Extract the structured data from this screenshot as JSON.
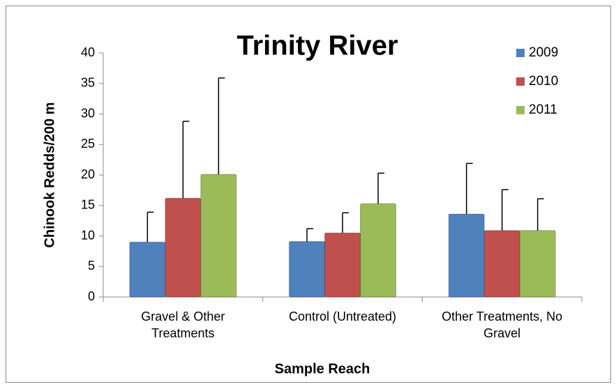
{
  "chart_data": {
    "type": "bar",
    "title": "Trinity River",
    "x_label": "Sample Reach",
    "y_label": "Chinook Redds/200 m",
    "categories": [
      "Gravel & Other Treatments",
      "Control (Untreated)",
      "Other Treatments, No Gravel"
    ],
    "series": [
      {
        "name": "2009",
        "color": "#4f81bd",
        "values": [
          9.0,
          9.1,
          13.6
        ],
        "errors": [
          4.9,
          2.1,
          8.3
        ]
      },
      {
        "name": "2010",
        "color": "#c0504d",
        "values": [
          16.2,
          10.5,
          10.9
        ],
        "errors": [
          12.6,
          3.3,
          6.7
        ]
      },
      {
        "name": "2011",
        "color": "#9bbb59",
        "values": [
          20.1,
          15.3,
          10.9
        ],
        "errors": [
          15.8,
          5.0,
          5.2
        ]
      }
    ],
    "ylim": [
      0,
      40
    ],
    "yticks": [
      0,
      5,
      10,
      15,
      20,
      25,
      30,
      35,
      40
    ],
    "grid": false,
    "legend": "top-right"
  }
}
